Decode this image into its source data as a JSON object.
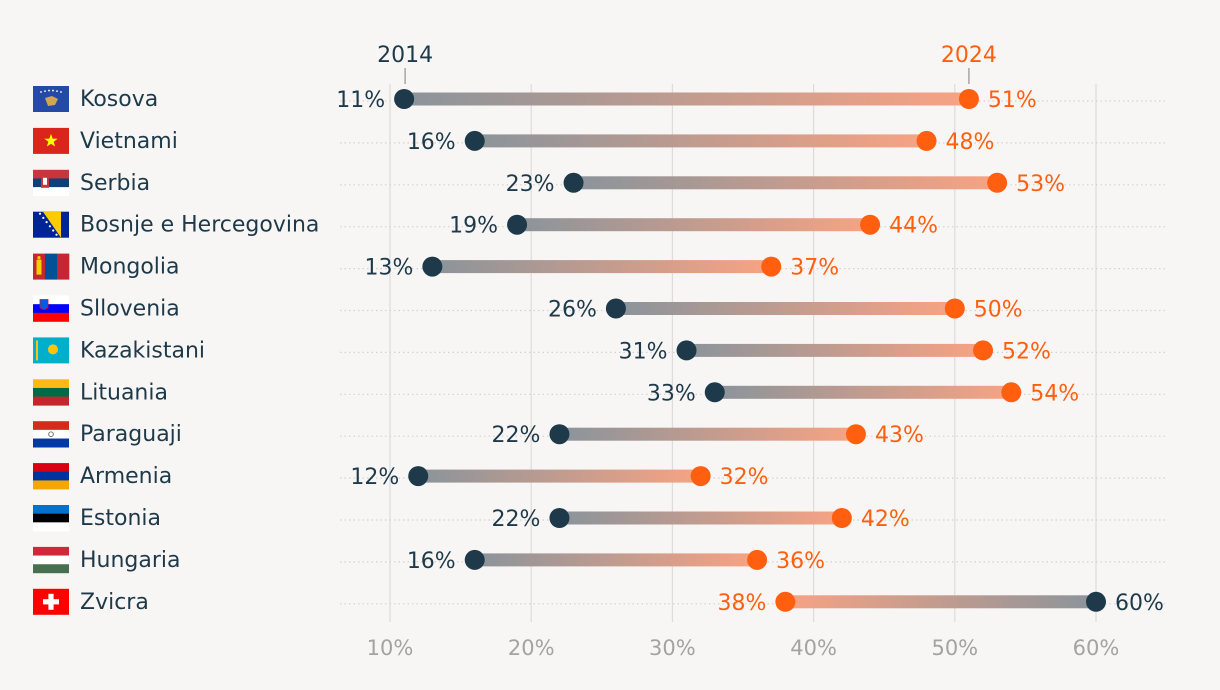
{
  "chart_data": {
    "type": "dumbbell",
    "start_label": "2014",
    "end_label": "2024",
    "x_ticks": [
      "10%",
      "20%",
      "30%",
      "40%",
      "50%",
      "60%"
    ],
    "x_tick_values": [
      10,
      20,
      30,
      40,
      50,
      60
    ],
    "xlim": [
      10,
      60
    ],
    "colors": {
      "start": "#1e3a4a",
      "end": "#ff5f0f",
      "grid": "#dcdcdc",
      "tick": "#a3a3a3"
    },
    "rows": [
      {
        "country": "Kosova",
        "flag": "kosovo-flag-icon",
        "start": 11,
        "end": 51,
        "start_label": "11%",
        "end_label": "51%"
      },
      {
        "country": "Vietnami",
        "flag": "vietnam-flag-icon",
        "start": 16,
        "end": 48,
        "start_label": "16%",
        "end_label": "48%"
      },
      {
        "country": "Serbia",
        "flag": "serbia-flag-icon",
        "start": 23,
        "end": 53,
        "start_label": "23%",
        "end_label": "53%"
      },
      {
        "country": "Bosnje e Hercegovina",
        "flag": "bosnia-flag-icon",
        "start": 19,
        "end": 44,
        "start_label": "19%",
        "end_label": "44%"
      },
      {
        "country": "Mongolia",
        "flag": "mongolia-flag-icon",
        "start": 13,
        "end": 37,
        "start_label": "13%",
        "end_label": "37%"
      },
      {
        "country": "Sllovenia",
        "flag": "slovenia-flag-icon",
        "start": 26,
        "end": 50,
        "start_label": "26%",
        "end_label": "50%"
      },
      {
        "country": "Kazakistani",
        "flag": "kazakhstan-flag-icon",
        "start": 31,
        "end": 52,
        "start_label": "31%",
        "end_label": "52%"
      },
      {
        "country": "Lituania",
        "flag": "lithuania-flag-icon",
        "start": 33,
        "end": 54,
        "start_label": "33%",
        "end_label": "54%"
      },
      {
        "country": "Paraguaji",
        "flag": "paraguay-flag-icon",
        "start": 22,
        "end": 43,
        "start_label": "22%",
        "end_label": "43%"
      },
      {
        "country": "Armenia",
        "flag": "armenia-flag-icon",
        "start": 12,
        "end": 32,
        "start_label": "12%",
        "end_label": "32%"
      },
      {
        "country": "Estonia",
        "flag": "estonia-flag-icon",
        "start": 22,
        "end": 42,
        "start_label": "22%",
        "end_label": "42%"
      },
      {
        "country": "Hungaria",
        "flag": "hungary-flag-icon",
        "start": 16,
        "end": 36,
        "start_label": "16%",
        "end_label": "36%"
      },
      {
        "country": "Zvicra",
        "flag": "switzerland-flag-icon",
        "start": 60,
        "end": 38,
        "start_label": "60%",
        "end_label": "38%"
      }
    ]
  }
}
